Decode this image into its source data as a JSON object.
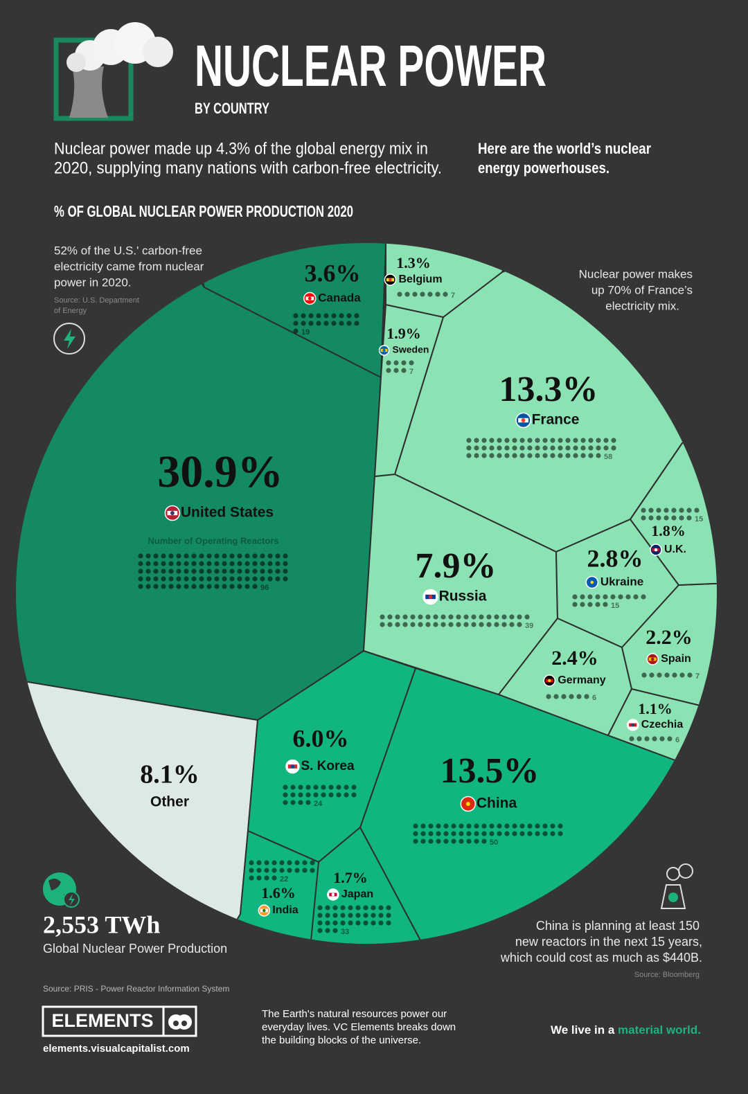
{
  "header": {
    "title": "NUCLEAR POWER",
    "subtitle": "BY COUNTRY",
    "intro": [
      "Nuclear power made up 4.3% of the global energy mix in",
      "2020, supplying many nations with carbon-free electricity."
    ],
    "intro_right": [
      "Here are the world’s nuclear",
      "energy powerhouses."
    ]
  },
  "chart_data": {
    "type": "treemap",
    "title": "% OF GLOBAL NUCLEAR POWER PRODUCTION 2020",
    "categories": [
      "United States",
      "China",
      "France",
      "Other",
      "Russia",
      "S. Korea",
      "Canada",
      "Ukraine",
      "Germany",
      "Spain",
      "Sweden",
      "U.K.",
      "Japan",
      "India",
      "Belgium",
      "Czechia"
    ],
    "values": [
      30.9,
      13.5,
      13.3,
      8.1,
      7.9,
      6.0,
      3.6,
      2.8,
      2.4,
      2.2,
      1.9,
      1.8,
      1.7,
      1.6,
      1.3,
      1.1
    ],
    "value_labels": [
      "30.9%",
      "13.5%",
      "13.3%",
      "8.1%",
      "7.9%",
      "6.0%",
      "3.6%",
      "2.8%",
      "2.4%",
      "2.2%",
      "1.9%",
      "1.8%",
      "1.7%",
      "1.6%",
      "1.3%",
      "1.1%"
    ],
    "reactors": [
      96,
      50,
      58,
      null,
      39,
      24,
      19,
      15,
      6,
      7,
      7,
      15,
      33,
      22,
      7,
      6
    ],
    "reactors_label": "Number of Operating Reactors",
    "colors": [
      "#138a63",
      "#10b57f",
      "#8be3b3",
      "#dde9e5",
      "#8be3b3",
      "#10b57f",
      "#138a63",
      "#8be3b3",
      "#8be3b3",
      "#8be3b3",
      "#8be3b3",
      "#8be3b3",
      "#10b57f",
      "#10b57f",
      "#8be3b3",
      "#8be3b3"
    ]
  },
  "notes": {
    "us": [
      "52% of the U.S.' carbon-free",
      "electricity came from nuclear",
      "power in 2020."
    ],
    "us_source": [
      "Source: U.S. Department",
      "of Energy"
    ],
    "france": [
      "Nuclear power makes",
      "up 70% of France’s",
      "electricity mix."
    ],
    "china": [
      "China is planning at least 150",
      "new reactors in the next 15 years,",
      "which could cost as much as $440B."
    ],
    "china_source": "Source: Bloomberg",
    "total": "2,553 TWh",
    "total_label": "Global Nuclear Power Production",
    "source": "Source: PRIS - Power Reactor Information System"
  },
  "footer": {
    "brand": "ELEMENTS",
    "url": "elements.visualcapitalist.com",
    "blurb": [
      "The Earth's natural resources power our",
      "everyday lives. VC Elements breaks down",
      "the building blocks of the universe."
    ],
    "tagline": "We live in a ",
    "tagline_accent": "material world."
  }
}
